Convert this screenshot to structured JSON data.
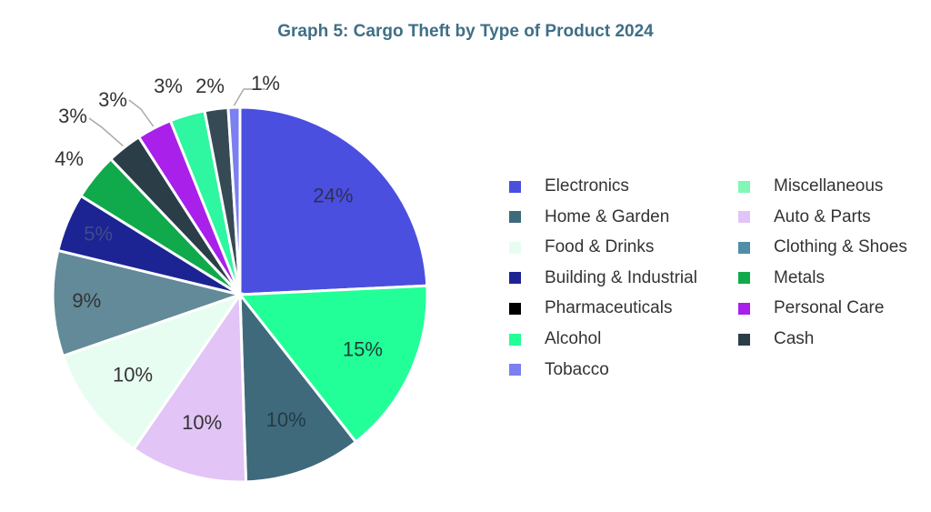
{
  "chart_data": {
    "type": "pie",
    "title": "Graph 5: Cargo Theft by Type of Product 2024",
    "value_suffix": "%",
    "slices": [
      {
        "label": "Electronics",
        "value": 24,
        "color": "#4a4fe0",
        "label_color": "#2f2f55"
      },
      {
        "label": "Alcohol",
        "value": 15,
        "color": "#22ff98",
        "label_color": "#1f3b33"
      },
      {
        "label": "Home & Garden",
        "value": 10,
        "color": "#3e6a7c",
        "label_color": "#243a44"
      },
      {
        "label": "Auto & Parts",
        "value": 10,
        "color": "#e2c4f6",
        "label_color": "#333333"
      },
      {
        "label": "Food & Drinks",
        "value": 10,
        "color": "#e8fdf2",
        "label_color": "#333333"
      },
      {
        "label": "Clothing & Shoes",
        "value": 9,
        "color": "#628a99",
        "label_color": "#333333"
      },
      {
        "label": "Building & Industrial",
        "value": 5,
        "color": "#1c2494",
        "label_color": "#404b8a"
      },
      {
        "label": "Metals",
        "value": 4,
        "color": "#10aa4c",
        "label_color": "#333333"
      },
      {
        "label": "Cash",
        "value": 3,
        "color": "#2b3e48",
        "label_color": "#333333"
      },
      {
        "label": "Personal Care",
        "value": 3,
        "color": "#a820ea",
        "label_color": "#333333"
      },
      {
        "label": "Miscellaneous",
        "value": 3,
        "color": "#2ff6a0",
        "label_color": "#333333"
      },
      {
        "label": "Pharmaceuticals",
        "value": 2,
        "color": "#364a55",
        "label_color": "#333333"
      },
      {
        "label": "Tobacco",
        "value": 1,
        "color": "#7b7ff0",
        "label_color": "#333333"
      }
    ],
    "legend": {
      "placement": "right",
      "columns": [
        [
          {
            "label": "Electronics",
            "color": "#4a4fe0"
          },
          {
            "label": "Home & Garden",
            "color": "#3e6a7c"
          },
          {
            "label": "Food & Drinks",
            "color": "#e8fdf2"
          },
          {
            "label": "Building & Industrial",
            "color": "#1c2494"
          },
          {
            "label": "Pharmaceuticals",
            "color": "#000000"
          },
          {
            "label": "Alcohol",
            "color": "#22ff98"
          },
          {
            "label": "Tobacco",
            "color": "#7b7ff0"
          }
        ],
        [
          {
            "label": "Miscellaneous",
            "color": "#80f7b3"
          },
          {
            "label": "Auto & Parts",
            "color": "#e2c4f6"
          },
          {
            "label": "Clothing & Shoes",
            "color": "#4f8ea6"
          },
          {
            "label": "Metals",
            "color": "#10aa4c"
          },
          {
            "label": "Personal Care",
            "color": "#a820ea"
          },
          {
            "label": "Cash",
            "color": "#2b3e48"
          }
        ]
      ]
    }
  }
}
